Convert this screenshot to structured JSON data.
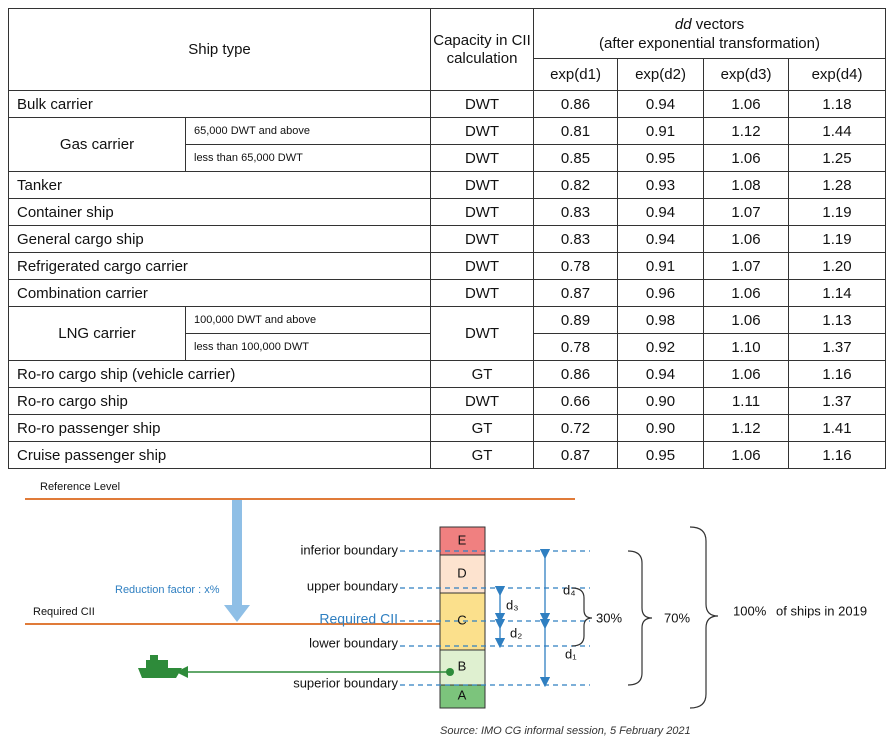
{
  "table": {
    "header": {
      "ship_type": "Ship type",
      "capacity": "Capacity in CII calculation",
      "dd_label": "dd",
      "vectors_label": "vectors",
      "transformation": "(after exponential transformation)",
      "columns": [
        "exp(d1)",
        "exp(d2)",
        "exp(d3)",
        "exp(d4)"
      ]
    },
    "rows": [
      {
        "ship_type": "Bulk carrier",
        "capacity": "DWT",
        "values": [
          "0.86",
          "0.94",
          "1.06",
          "1.18"
        ]
      },
      {
        "ship_type": "Gas carrier",
        "subtypes": [
          {
            "name": "65,000 DWT and above",
            "capacity": "DWT",
            "values": [
              "0.81",
              "0.91",
              "1.12",
              "1.44"
            ]
          },
          {
            "name": "less than 65,000 DWT",
            "capacity": "DWT",
            "values": [
              "0.85",
              "0.95",
              "1.06",
              "1.25"
            ]
          }
        ]
      },
      {
        "ship_type": "Tanker",
        "capacity": "DWT",
        "values": [
          "0.82",
          "0.93",
          "1.08",
          "1.28"
        ]
      },
      {
        "ship_type": "Container ship",
        "capacity": "DWT",
        "values": [
          "0.83",
          "0.94",
          "1.07",
          "1.19"
        ]
      },
      {
        "ship_type": "General cargo ship",
        "capacity": "DWT",
        "values": [
          "0.83",
          "0.94",
          "1.06",
          "1.19"
        ]
      },
      {
        "ship_type": "Refrigerated cargo carrier",
        "capacity": "DWT",
        "values": [
          "0.78",
          "0.91",
          "1.07",
          "1.20"
        ]
      },
      {
        "ship_type": "Combination carrier",
        "capacity": "DWT",
        "values": [
          "0.87",
          "0.96",
          "1.06",
          "1.14"
        ]
      },
      {
        "ship_type": "LNG carrier",
        "capacity": "DWT",
        "subtypes": [
          {
            "name": "100,000 DWT and above",
            "values": [
              "0.89",
              "0.98",
              "1.06",
              "1.13"
            ]
          },
          {
            "name": "less than 100,000 DWT",
            "values": [
              "0.78",
              "0.92",
              "1.10",
              "1.37"
            ]
          }
        ]
      },
      {
        "ship_type": "Ro-ro cargo ship (vehicle carrier)",
        "capacity": "GT",
        "values": [
          "0.86",
          "0.94",
          "1.06",
          "1.16"
        ]
      },
      {
        "ship_type": "Ro-ro cargo ship",
        "capacity": "DWT",
        "values": [
          "0.66",
          "0.90",
          "1.11",
          "1.37"
        ]
      },
      {
        "ship_type": "Ro-ro passenger ship",
        "capacity": "GT",
        "values": [
          "0.72",
          "0.90",
          "1.12",
          "1.41"
        ]
      },
      {
        "ship_type": "Cruise passenger ship",
        "capacity": "GT",
        "values": [
          "0.87",
          "0.95",
          "1.06",
          "1.16"
        ]
      }
    ]
  },
  "diagram": {
    "reference_level": "Reference Level",
    "reduction_factor": "Reduction factor : x%",
    "required_cii_left": "Required CII",
    "boundaries": [
      "inferior boundary",
      "upper boundary",
      "Required CII",
      "lower boundary",
      "superior boundary"
    ],
    "grades": [
      "E",
      "D",
      "C",
      "B",
      "A"
    ],
    "d_labels": [
      "d₄",
      "d₃",
      "d₂",
      "d₁"
    ],
    "percent_30": "30%",
    "percent_70": "70%",
    "percent_100": "100%",
    "ships_label": "of ships in 2019",
    "source": "Source: IMO CG informal session, 5 February 2021"
  }
}
